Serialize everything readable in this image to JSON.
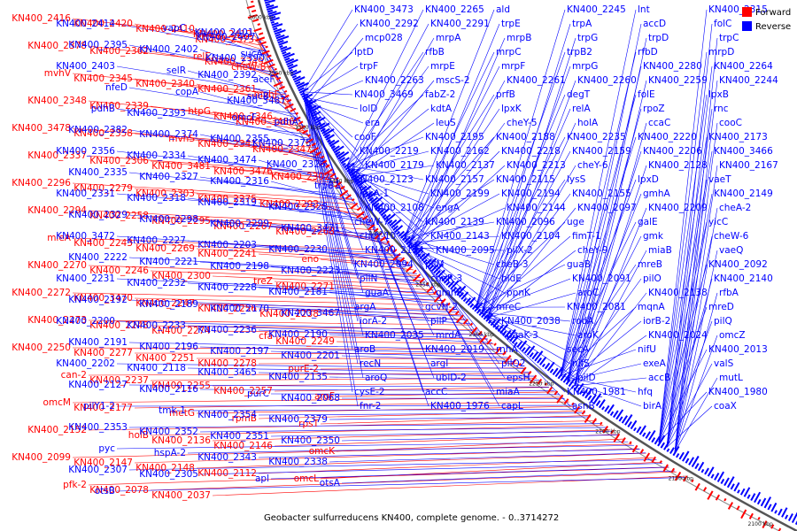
{
  "caption": "Geobacter sulfurreducens KN400, complete genome. - 0..3714272",
  "legend": [
    {
      "label": "Forward",
      "color": "#ff0000"
    },
    {
      "label": "Reverse",
      "color": "#0000ff"
    }
  ],
  "colors": {
    "forward": "#ff0000",
    "reverse": "#0000ff",
    "backbone": "#777777"
  },
  "ticks": [
    "2600 kbp",
    "2550 kbp",
    "2500 kbp",
    "2450 kbp",
    "2400 kbp",
    "2350 kbp",
    "2300 kbp",
    "2250 kbp",
    "2200 kbp",
    "2150 kbp",
    "2100 kbp"
  ],
  "red_labels": [
    "KN400_2416",
    "KN400_2420",
    "KN400_2410",
    "KN400_2412",
    "KN400_2373",
    "KN400_2378",
    "KN400_2362",
    "relE",
    "KN400_2349",
    "cheW-8",
    "mvhV",
    "KN400_2345",
    "KN400_2340",
    "KN400_2361",
    "mvhF",
    "KN400_2348",
    "KN400_2339",
    "htpG",
    "KN400_2346",
    "KN400_3486",
    "KN400_3478",
    "KN400_2358",
    "mvhS",
    "KN400_2341",
    "KN400_2347",
    "KN400_2337",
    "KN400_2306",
    "KN400_3481",
    "KN400_3476",
    "KN400_2302",
    "KN400_2296",
    "KN400_2279",
    "KN400_2303",
    "KN400_2275",
    "KN400_2293",
    "KN400_2294",
    "KN400_2258",
    "KN400_2295",
    "KN400_2267",
    "KN400_2268",
    "mleA",
    "KN400_2243",
    "KN400_2269",
    "KN400_2241",
    "eno",
    "KN400_2270",
    "KN400_2246",
    "KN400_2300",
    "treZ",
    "KN400_2271",
    "KN400_2272",
    "KN400_3470",
    "KN400_2247",
    "KN400_2256",
    "KN400_2238",
    "KN400_2273",
    "KN400_2248",
    "KN400_2274",
    "cfa",
    "KN400_2249",
    "KN400_2250",
    "KN400_2277",
    "KN400_2251",
    "KN400_2278",
    "purE-2",
    "can-2",
    "KN400_2237",
    "KN400_2255",
    "KN400_2257",
    "aroF",
    "omcM",
    "KN400_2177",
    "metG",
    "rpmB",
    "rpsT",
    "KN400_2152",
    "holB",
    "KN400_2136",
    "KN400_2146",
    "omcK",
    "KN400_2099",
    "KN400_2147",
    "KN400_2148",
    "KN400_2112",
    "omcL",
    "pfk-2",
    "KN400_2078",
    "KN400_2037"
  ],
  "blue_labels": [
    "KN400_2414",
    "vapC",
    "KN400_2401",
    "KN400_2407",
    "KN400_2395",
    "KN400_2402",
    "sucA",
    "KN400_2390",
    "KN400_2403",
    "selR",
    "KN400_2392",
    "aceF",
    "nfeD",
    "copA",
    "sucB",
    "KN400_3487",
    "pdhB",
    "KN400_2393",
    "omcF",
    "pdhA",
    "KN400_2382",
    "KN400_2374",
    "KN400_2355",
    "KN400_2375",
    "KN400_2356",
    "KN400_2334",
    "KN400_3474",
    "KN400_2326",
    "KN400_2335",
    "KN400_2327",
    "KN400_2316",
    "trpB1",
    "KN400_2331",
    "KN400_2318",
    "KN400_2319",
    "KN400_2328",
    "KN400_2329",
    "KN400_2298",
    "KN400_2299",
    "KN400_3471",
    "KN400_3472",
    "KN400_2227",
    "KN400_2203",
    "KN400_2230",
    "KN400_2222",
    "KN400_2221",
    "KN400_2198",
    "KN400_2223",
    "KN400_2231",
    "KN400_2232",
    "KN400_2228",
    "KN400_2181",
    "KN400_2192",
    "KN400_2189",
    "KN400_2170",
    "KN400_3467",
    "KN400_2200",
    "KN400_2233",
    "KN400_2236",
    "KN400_2190",
    "KN400_2191",
    "KN400_2196",
    "KN400_2197",
    "KN400_2201",
    "KN400_2202",
    "KN400_2118",
    "KN400_3465",
    "KN400_2135",
    "KN400_2127",
    "KN400_2116",
    "purC",
    "KN400_2068",
    "pilY1-2",
    "tmk-1",
    "KN400_2354",
    "KN400_2379",
    "KN400_2353",
    "KN400_2352",
    "KN400_2351",
    "KN400_2350",
    "pyc",
    "hspA-2",
    "KN400_2343",
    "KN400_2338",
    "KN400_2307",
    "KN400_2305",
    "apl",
    "otsA",
    "otsB",
    "usp-4",
    "KN400_3473",
    "KN400_2265",
    "ald",
    "KN400_2245",
    "lnt",
    "KN400_2315",
    "KN400_2292",
    "KN400_2291",
    "trpE",
    "trpA",
    "accD",
    "folC",
    "mcp028",
    "mrpA",
    "mrpB",
    "trpG",
    "trpD",
    "trpC",
    "lptD",
    "rfbB",
    "mrpC",
    "trpB2",
    "rfbD",
    "mrpD",
    "trpF",
    "mrpE",
    "mrpF",
    "mrpG",
    "KN400_2280",
    "KN400_2264",
    "KN400_2263",
    "mscS-2",
    "KN400_2261",
    "KN400_2260",
    "KN400_2259",
    "KN400_2244",
    "KN400_3469",
    "fabZ-2",
    "prfB",
    "degT",
    "folE",
    "lpxB",
    "lolD",
    "kdtA",
    "lpxK",
    "relA",
    "rpoZ",
    "rnc",
    "era",
    "leuS",
    "cheY-5",
    "holA",
    "ccaC",
    "cooC",
    "cooF",
    "KN400_2195",
    "KN400_2188",
    "KN400_2235",
    "KN400_2220",
    "KN400_2173",
    "KN400_2219",
    "KN400_2162",
    "KN400_2218",
    "KN400_2159",
    "KN400_2206",
    "KN400_3466",
    "KN400_2179",
    "KN400_2137",
    "KN400_2213",
    "cheY-6",
    "KN400_2128",
    "KN400_2167",
    "KN400_2123",
    "KN400_2157",
    "KN400_2115",
    "lysS",
    "lpxD",
    "vaeT",
    "lpxA-1",
    "KN400_2199",
    "KN400_2194",
    "KN400_2155",
    "gmhA",
    "KN400_2149",
    "KN400_2108",
    "engA",
    "KN400_2144",
    "KN400_2097",
    "KN400_2209",
    "cheA-2",
    "cheW-7",
    "KN400_2139",
    "KN400_2096",
    "uge",
    "galE",
    "yicC",
    "cheY-10",
    "KN400_2143",
    "KN400_2104",
    "fimT-1",
    "gmk",
    "cheW-6",
    "KN400_2134",
    "KN400_2095",
    "pilX-2",
    "cheY-9",
    "miaB",
    "vaeQ",
    "KN400_2094",
    "pilM",
    "cheB-3",
    "guaB",
    "mreB",
    "KN400_2092",
    "pilN",
    "cheR-3",
    "hldE",
    "KN400_2091",
    "pilO",
    "KN400_2140",
    "guaA",
    "gmhB",
    "ppnK",
    "aroC",
    "KN400_2138",
    "rfbA",
    "argA",
    "gcvH-2",
    "mreC",
    "KN400_2081",
    "mqnA",
    "mreD",
    "iorA-2",
    "pilP",
    "KN400_2038",
    "rodA",
    "iorB-2",
    "pilQ",
    "KN400_2035",
    "mrdA",
    "paaK-3",
    "aroK",
    "KN400_2024",
    "omcZ",
    "aroB",
    "KN400_2019",
    "rnhA",
    "secA",
    "nifU",
    "KN400_2013",
    "recN",
    "argI",
    "pilQ2",
    "nifS",
    "exeA",
    "valS",
    "aroQ",
    "ubiD-2",
    "epsH",
    "pilD",
    "accB",
    "mutL",
    "cysE-2",
    "accC",
    "miaA",
    "KN400_1981",
    "hfq",
    "KN400_1980",
    "fnr-2",
    "KN400_1976",
    "capL",
    "asnB",
    "birA",
    "coaX"
  ]
}
